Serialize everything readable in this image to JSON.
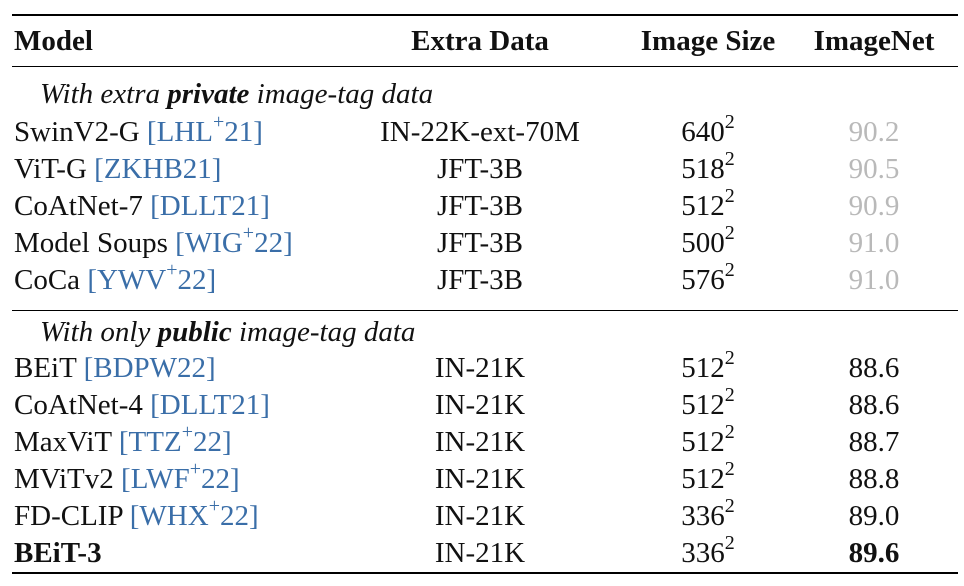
{
  "header": {
    "model": "Model",
    "extra_data": "Extra Data",
    "image_size": "Image Size",
    "imagenet": "ImageNet"
  },
  "sections": [
    {
      "title_pre": "With extra ",
      "title_emph": "private",
      "title_post": " image-tag data",
      "rows": [
        {
          "model": "SwinV2-G",
          "cite": "LHL",
          "cite_sup": "+",
          "cite_year": "21",
          "extra_data": "IN-22K-ext-70M",
          "size_base": "640",
          "size_exp": "2",
          "imagenet": "90.2"
        },
        {
          "model": "ViT-G",
          "cite": "ZKHB21",
          "cite_sup": "",
          "cite_year": "",
          "extra_data": "JFT-3B",
          "size_base": "518",
          "size_exp": "2",
          "imagenet": "90.5"
        },
        {
          "model": "CoAtNet-7",
          "cite": "DLLT21",
          "cite_sup": "",
          "cite_year": "",
          "extra_data": "JFT-3B",
          "size_base": "512",
          "size_exp": "2",
          "imagenet": "90.9"
        },
        {
          "model": "Model Soups",
          "cite": "WIG",
          "cite_sup": "+",
          "cite_year": "22",
          "extra_data": "JFT-3B",
          "size_base": "500",
          "size_exp": "2",
          "imagenet": "91.0"
        },
        {
          "model": "CoCa",
          "cite": "YWV",
          "cite_sup": "+",
          "cite_year": "22",
          "extra_data": "JFT-3B",
          "size_base": "576",
          "size_exp": "2",
          "imagenet": "91.0"
        }
      ]
    },
    {
      "title_pre": "With only ",
      "title_emph": "public",
      "title_post": " image-tag data",
      "rows": [
        {
          "model": "BEiT",
          "cite": "BDPW22",
          "cite_sup": "",
          "cite_year": "",
          "extra_data": "IN-21K",
          "size_base": "512",
          "size_exp": "2",
          "imagenet": "88.6"
        },
        {
          "model": "CoAtNet-4",
          "cite": "DLLT21",
          "cite_sup": "",
          "cite_year": "",
          "extra_data": "IN-21K",
          "size_base": "512",
          "size_exp": "2",
          "imagenet": "88.6"
        },
        {
          "model": "MaxViT",
          "cite": "TTZ",
          "cite_sup": "+",
          "cite_year": "22",
          "extra_data": "IN-21K",
          "size_base": "512",
          "size_exp": "2",
          "imagenet": "88.7"
        },
        {
          "model": "MViTv2",
          "cite": "LWF",
          "cite_sup": "+",
          "cite_year": "22",
          "extra_data": "IN-21K",
          "size_base": "512",
          "size_exp": "2",
          "imagenet": "88.8"
        },
        {
          "model": "FD-CLIP",
          "cite": "WHX",
          "cite_sup": "+",
          "cite_year": "22",
          "extra_data": "IN-21K",
          "size_base": "336",
          "size_exp": "2",
          "imagenet": "89.0"
        },
        {
          "model": "BEiT-3",
          "cite": "",
          "cite_sup": "",
          "cite_year": "",
          "extra_data": "IN-21K",
          "size_base": "336",
          "size_exp": "2",
          "imagenet": "89.6"
        }
      ]
    }
  ]
}
